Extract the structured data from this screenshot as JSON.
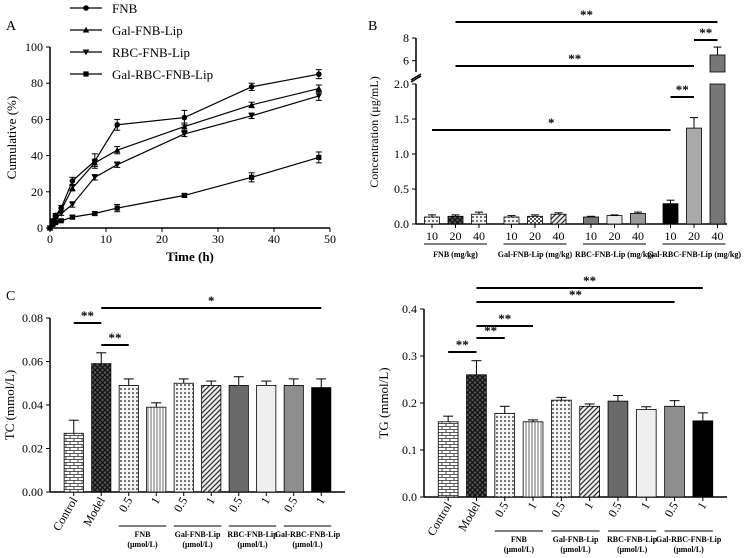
{
  "chart_data": [
    {
      "panel": "A",
      "type": "line",
      "title": "",
      "xlabel": "Time (h)",
      "ylabel": "Cumulative (%)",
      "xlim": [
        0,
        50
      ],
      "ylim": [
        0,
        100
      ],
      "xticks": [
        0,
        10,
        20,
        30,
        40,
        50
      ],
      "yticks": [
        0,
        20,
        40,
        60,
        80,
        100
      ],
      "legend_position": "top-left",
      "series": [
        {
          "name": "FNB",
          "marker": "circle",
          "x": [
            0,
            0.5,
            1,
            2,
            4,
            8,
            12,
            24,
            36,
            48
          ],
          "y": [
            0,
            4,
            7,
            11,
            26,
            37,
            57,
            61,
            78,
            85
          ],
          "err": [
            0,
            1,
            1,
            1.5,
            2,
            4,
            3,
            4,
            2,
            2.5
          ]
        },
        {
          "name": "Gal-FNB-Lip",
          "marker": "triangle-up",
          "x": [
            0,
            0.5,
            1,
            2,
            4,
            8,
            12,
            24,
            36,
            48
          ],
          "y": [
            0,
            3,
            6,
            10,
            22,
            36,
            43,
            56,
            68,
            77
          ],
          "err": [
            0,
            1,
            1,
            1,
            1.5,
            2,
            2,
            2,
            1.5,
            2
          ]
        },
        {
          "name": "RBC-FNB-Lip",
          "marker": "triangle-down",
          "x": [
            0,
            0.5,
            1,
            2,
            4,
            8,
            12,
            24,
            36,
            48
          ],
          "y": [
            0,
            3,
            5,
            8,
            13,
            28,
            35,
            52,
            62,
            73
          ],
          "err": [
            0,
            1,
            1,
            1,
            1.5,
            1.5,
            1.5,
            1.5,
            1.5,
            2.5
          ]
        },
        {
          "name": "Gal-RBC-FNB-Lip",
          "marker": "square",
          "x": [
            0,
            0.5,
            1,
            2,
            4,
            8,
            12,
            24,
            36,
            48
          ],
          "y": [
            0,
            2,
            3,
            4,
            6,
            8,
            11,
            18,
            28,
            39
          ],
          "err": [
            0,
            0.5,
            0.5,
            0.5,
            1,
            1,
            2,
            1,
            2.5,
            3
          ]
        }
      ]
    },
    {
      "panel": "B",
      "type": "bar",
      "xlabel": "",
      "ylabel": "Concentration (μg/mL)",
      "ylim_lower": [
        0,
        2.0
      ],
      "ylim_upper": [
        5,
        8
      ],
      "yticks_lower": [
        "0.0",
        "0.5",
        "1.0",
        "1.5",
        "2.0"
      ],
      "yticks_upper": [
        "6",
        "8"
      ],
      "categories": [
        "10",
        "20",
        "40",
        "10",
        "20",
        "40",
        "10",
        "20",
        "40",
        "10",
        "20",
        "40"
      ],
      "values": [
        0.1,
        0.11,
        0.14,
        0.1,
        0.11,
        0.14,
        0.1,
        0.12,
        0.15,
        0.29,
        1.37,
        6.5
      ],
      "err": [
        0.03,
        0.02,
        0.03,
        0.02,
        0.02,
        0.02,
        0.01,
        0.01,
        0.02,
        0.05,
        0.15,
        0.7
      ],
      "groups": [
        {
          "label": "FNB (mg/kg)"
        },
        {
          "label": "Gal-FNB-Lip (mg/kg)"
        },
        {
          "label": "RBC-FNB-Lip (mg/kg)"
        },
        {
          "label": "Gal-RBC-FNB-Lip (mg/kg)"
        }
      ],
      "significance": [
        "**",
        "**",
        "**",
        "**",
        "*"
      ]
    },
    {
      "panel": "C",
      "type": "bar",
      "xlabel": "",
      "ylabel": "TC   (mmol/L)",
      "ylim": [
        0,
        0.08
      ],
      "yticks": [
        "0.00",
        "0.02",
        "0.04",
        "0.06",
        "0.08"
      ],
      "categories": [
        "Control",
        "Model",
        "0.5",
        "1",
        "0.5",
        "1",
        "0.5",
        "1",
        "0.5",
        "1"
      ],
      "values": [
        0.027,
        0.059,
        0.049,
        0.039,
        0.05,
        0.049,
        0.049,
        0.049,
        0.049,
        0.048
      ],
      "err": [
        0.006,
        0.005,
        0.003,
        0.002,
        0.002,
        0.002,
        0.004,
        0.002,
        0.003,
        0.004
      ],
      "groups": [
        {
          "label_lines": [
            "FNB",
            "(μmol/L)"
          ]
        },
        {
          "label_lines": [
            "Gal-FNB-Lip",
            "(μmol/L)"
          ]
        },
        {
          "label_lines": [
            "RBC-FNB-Lip",
            "(μmol/L)"
          ]
        },
        {
          "label_lines": [
            "Gal-RBC-FNB-Lip",
            "(μmol/L)"
          ]
        }
      ],
      "significance": [
        "**",
        "**",
        "*"
      ]
    },
    {
      "panel": "",
      "type": "bar",
      "xlabel": "",
      "ylabel": "TG   (mmol/L)",
      "ylim": [
        0,
        0.4
      ],
      "yticks": [
        "0.0",
        "0.1",
        "0.2",
        "0.3",
        "0.4"
      ],
      "categories": [
        "Control",
        "Model",
        "0.5",
        "1",
        "0.5",
        "1",
        "0.5",
        "1",
        "0.5",
        "1"
      ],
      "values": [
        0.16,
        0.26,
        0.178,
        0.16,
        0.206,
        0.193,
        0.204,
        0.186,
        0.193,
        0.162
      ],
      "err": [
        0.012,
        0.03,
        0.015,
        0.004,
        0.006,
        0.005,
        0.012,
        0.006,
        0.012,
        0.017
      ],
      "groups": [
        {
          "label_lines": [
            "FNB",
            "(μmol/L)"
          ]
        },
        {
          "label_lines": [
            "Gal-FNB-Lip",
            "(μmol/L)"
          ]
        },
        {
          "label_lines": [
            "RBC-FNB-Lip",
            "(μmol/L)"
          ]
        },
        {
          "label_lines": [
            "Gal-RBC-FNB-Lip",
            "(μmol/L)"
          ]
        }
      ],
      "significance": [
        "**",
        "**",
        "**",
        "**",
        "**"
      ]
    }
  ]
}
